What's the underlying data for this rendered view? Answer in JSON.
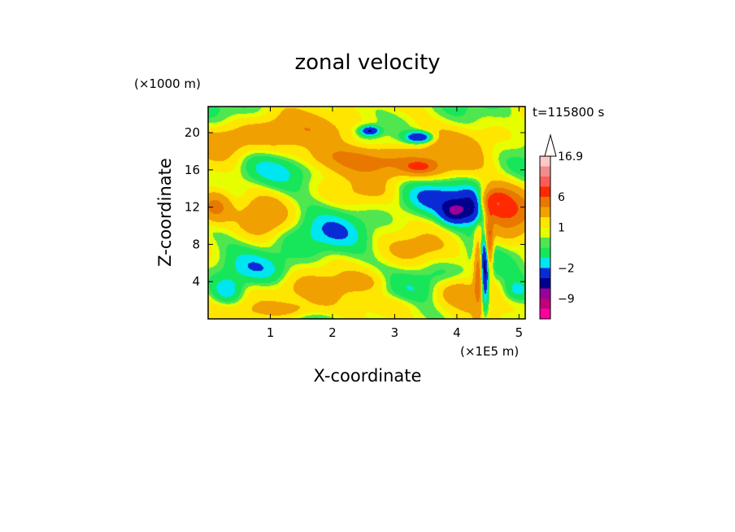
{
  "chart_data": {
    "type": "heatmap",
    "title": "zonal velocity",
    "xlabel": "X-coordinate",
    "ylabel": "Z-coordinate",
    "x_unit": "(×1E5 m)",
    "y_unit": "(×1000 m)",
    "time_label": "t=115800 s",
    "x_ticks": [
      1,
      2,
      3,
      4,
      5
    ],
    "y_ticks": [
      4,
      8,
      12,
      16,
      20
    ],
    "xlim": [
      0,
      5.1
    ],
    "ylim": [
      0,
      22.8
    ],
    "colorbar": {
      "max_label": "16.9",
      "tick_labels": [
        {
          "label": "16.9",
          "value": 16.9
        },
        {
          "label": "6",
          "value": 6
        },
        {
          "label": "1",
          "value": 1
        },
        {
          "label": "−2",
          "value": -2
        },
        {
          "label": "−9",
          "value": -9
        }
      ],
      "levels": [
        {
          "min": -16,
          "max": -12,
          "color": "#ff00a0"
        },
        {
          "min": -12,
          "max": -9,
          "color": "#c0007a"
        },
        {
          "min": -9,
          "max": -6,
          "color": "#9a009a"
        },
        {
          "min": -6,
          "max": -4,
          "color": "#00008c"
        },
        {
          "min": -4,
          "max": -2,
          "color": "#0a2ad6"
        },
        {
          "min": -2,
          "max": -1,
          "color": "#00e6f0"
        },
        {
          "min": -1,
          "max": 0,
          "color": "#18e65a"
        },
        {
          "min": 0,
          "max": 0.5,
          "color": "#50e650"
        },
        {
          "min": 0.5,
          "max": 1,
          "color": "#e6ff00"
        },
        {
          "min": 1,
          "max": 2,
          "color": "#ffe600"
        },
        {
          "min": 2,
          "max": 4,
          "color": "#f0a000"
        },
        {
          "min": 4,
          "max": 6,
          "color": "#e87800"
        },
        {
          "min": 6,
          "max": 9,
          "color": "#ff2a00"
        },
        {
          "min": 9,
          "max": 12,
          "color": "#ff5a5a"
        },
        {
          "min": 12,
          "max": 14.5,
          "color": "#f08c8c"
        },
        {
          "min": 14.5,
          "max": 16.9,
          "color": "#ffc8c8"
        }
      ]
    },
    "field_features": [
      {
        "x": 0.1,
        "z": 12,
        "rx": 0.25,
        "rz": 1.6,
        "u": 4.5
      },
      {
        "x": 0.9,
        "z": 11,
        "rx": 0.35,
        "rz": 2.0,
        "u": 2.5
      },
      {
        "x": 0.3,
        "z": 3.0,
        "rx": 0.25,
        "rz": 1.5,
        "u": -2.5
      },
      {
        "x": 0.8,
        "z": 5.5,
        "rx": 0.5,
        "rz": 1.5,
        "u": -1.5
      },
      {
        "x": 1.6,
        "z": 9.0,
        "rx": 0.55,
        "rz": 2.5,
        "u": -1.5
      },
      {
        "x": 2.1,
        "z": 9.5,
        "rx": 0.4,
        "rz": 1.8,
        "u": -1.2
      },
      {
        "x": 1.0,
        "z": 16.0,
        "rx": 0.6,
        "rz": 1.6,
        "u": -1.3
      },
      {
        "x": 2.5,
        "z": 13.5,
        "rx": 0.55,
        "rz": 1.2,
        "u": 0.8
      },
      {
        "x": 1.4,
        "z": 20.0,
        "rx": 1.2,
        "rz": 1.8,
        "u": 2.2
      },
      {
        "x": 2.3,
        "z": 17.5,
        "rx": 0.8,
        "rz": 1.2,
        "u": 2.5
      },
      {
        "x": 3.0,
        "z": 16.5,
        "rx": 1.0,
        "rz": 1.4,
        "u": 3.0
      },
      {
        "x": 3.4,
        "z": 16.3,
        "rx": 0.25,
        "rz": 0.7,
        "u": 3.5
      },
      {
        "x": 2.6,
        "z": 20.2,
        "rx": 0.15,
        "rz": 0.5,
        "u": -5.0
      },
      {
        "x": 3.4,
        "z": 19.5,
        "rx": 0.22,
        "rz": 0.6,
        "u": -5.0
      },
      {
        "x": 3.7,
        "z": 13.0,
        "rx": 0.55,
        "rz": 1.6,
        "u": -2.5
      },
      {
        "x": 3.95,
        "z": 11.5,
        "rx": 0.2,
        "rz": 1.2,
        "u": -5.0
      },
      {
        "x": 4.3,
        "z": 12.0,
        "rx": 0.25,
        "rz": 1.8,
        "u": -6.5
      },
      {
        "x": 4.55,
        "z": 12.5,
        "rx": 0.25,
        "rz": 1.5,
        "u": 7.0
      },
      {
        "x": 4.85,
        "z": 11.5,
        "rx": 0.35,
        "rz": 2.5,
        "u": 4.5
      },
      {
        "x": 4.45,
        "z": 5.0,
        "rx": 0.07,
        "rz": 3.8,
        "u": -6.0
      },
      {
        "x": 4.35,
        "z": 5.0,
        "rx": 0.07,
        "rz": 3.8,
        "u": 5.0
      },
      {
        "x": 4.52,
        "z": 8.0,
        "rx": 0.06,
        "rz": 3.0,
        "u": 6.0
      },
      {
        "x": 4.0,
        "z": 3.0,
        "rx": 0.35,
        "rz": 1.4,
        "u": 2.5
      },
      {
        "x": 3.6,
        "z": 4.0,
        "rx": 0.5,
        "rz": 2.5,
        "u": -1.1
      },
      {
        "x": 3.3,
        "z": 7.5,
        "rx": 0.5,
        "rz": 1.5,
        "u": 1.2
      },
      {
        "x": 1.6,
        "z": 3.0,
        "rx": 0.7,
        "rz": 1.5,
        "u": 1.5
      },
      {
        "x": 1.3,
        "z": 1.0,
        "rx": 0.6,
        "rz": 0.9,
        "u": 2.0
      },
      {
        "x": 2.5,
        "z": 4.0,
        "rx": 0.4,
        "rz": 1.2,
        "u": 1.5
      },
      {
        "x": 3.0,
        "z": 1.5,
        "rx": 0.6,
        "rz": 1.2,
        "u": 1.3
      },
      {
        "x": 4.0,
        "z": 18.5,
        "rx": 0.6,
        "rz": 2.0,
        "u": 1.5
      },
      {
        "x": 0.3,
        "z": 19.0,
        "rx": 0.4,
        "rz": 1.5,
        "u": 1.5
      },
      {
        "x": 4.95,
        "z": 3.0,
        "rx": 0.2,
        "rz": 1.2,
        "u": -2.0
      }
    ],
    "background_value": 0.7
  }
}
